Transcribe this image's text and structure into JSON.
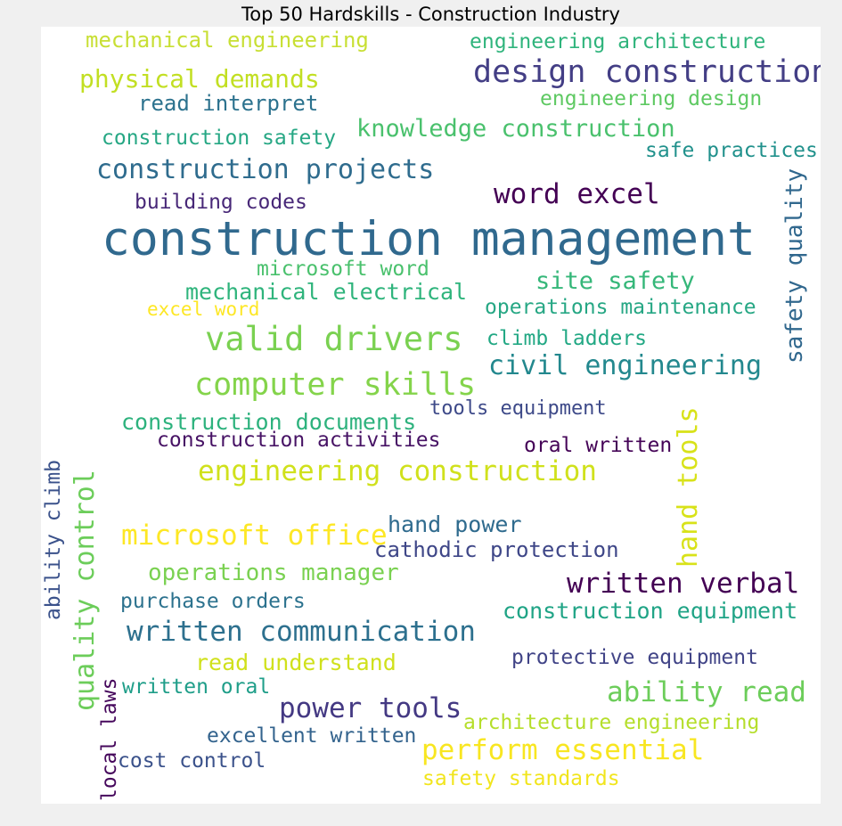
{
  "title": "Top 50 Hardskills - Construction Industry",
  "words": [
    {
      "text": "mechanical engineering",
      "color": "#c8df34"
    },
    {
      "text": "engineering architecture",
      "color": "#2fb47c"
    },
    {
      "text": "design construction",
      "color": "#433e85"
    },
    {
      "text": "physical demands",
      "color": "#c2df23"
    },
    {
      "text": "read interpret",
      "color": "#2c728e"
    },
    {
      "text": "engineering design",
      "color": "#5ec962"
    },
    {
      "text": "knowledge construction",
      "color": "#4ac16d"
    },
    {
      "text": "construction safety",
      "color": "#26a784"
    },
    {
      "text": "safe practices",
      "color": "#21918c"
    },
    {
      "text": "construction projects",
      "color": "#2f6c8e"
    },
    {
      "text": "word excel",
      "color": "#440154"
    },
    {
      "text": "building codes",
      "color": "#482878"
    },
    {
      "text": "safety quality",
      "color": "#31688e"
    },
    {
      "text": "construction management",
      "color": "#30698e"
    },
    {
      "text": "microsoft word",
      "color": "#4ac16d"
    },
    {
      "text": "mechanical electrical",
      "color": "#2fb47c"
    },
    {
      "text": "site safety",
      "color": "#35b779"
    },
    {
      "text": "excel word",
      "color": "#fde725"
    },
    {
      "text": "operations maintenance",
      "color": "#26a784"
    },
    {
      "text": "valid drivers",
      "color": "#7ad151"
    },
    {
      "text": "climb ladders",
      "color": "#22a884"
    },
    {
      "text": "civil engineering",
      "color": "#23888e"
    },
    {
      "text": "computer skills",
      "color": "#84d44b"
    },
    {
      "text": "tools equipment",
      "color": "#3e4a89"
    },
    {
      "text": "hand tools",
      "color": "#d8e219"
    },
    {
      "text": "construction documents",
      "color": "#2db27d"
    },
    {
      "text": "construction activities",
      "color": "#471365"
    },
    {
      "text": "oral written",
      "color": "#450457"
    },
    {
      "text": "engineering construction",
      "color": "#d0e11c"
    },
    {
      "text": "ability climb",
      "color": "#3b528b"
    },
    {
      "text": "quality control",
      "color": "#6ccd5a"
    },
    {
      "text": "hand power",
      "color": "#2f6b8e"
    },
    {
      "text": "microsoft office",
      "color": "#fde725"
    },
    {
      "text": "cathodic protection",
      "color": "#3f4788"
    },
    {
      "text": "operations manager",
      "color": "#7ad151"
    },
    {
      "text": "written verbal",
      "color": "#440154"
    },
    {
      "text": "purchase orders",
      "color": "#2c728e"
    },
    {
      "text": "construction equipment",
      "color": "#20a486"
    },
    {
      "text": "written communication",
      "color": "#2d708e"
    },
    {
      "text": "read understand",
      "color": "#d0e11c"
    },
    {
      "text": "protective equipment",
      "color": "#414487"
    },
    {
      "text": "local laws",
      "color": "#46085c"
    },
    {
      "text": "written oral",
      "color": "#1f9e89"
    },
    {
      "text": "ability read",
      "color": "#6ccd5a"
    },
    {
      "text": "power tools",
      "color": "#443983"
    },
    {
      "text": "architecture engineering",
      "color": "#b5de2b"
    },
    {
      "text": "excellent written",
      "color": "#33638d"
    },
    {
      "text": "perform essential",
      "color": "#f8e621"
    },
    {
      "text": "cost control",
      "color": "#3b528b"
    },
    {
      "text": "safety standards",
      "color": "#f1e51d"
    }
  ]
}
